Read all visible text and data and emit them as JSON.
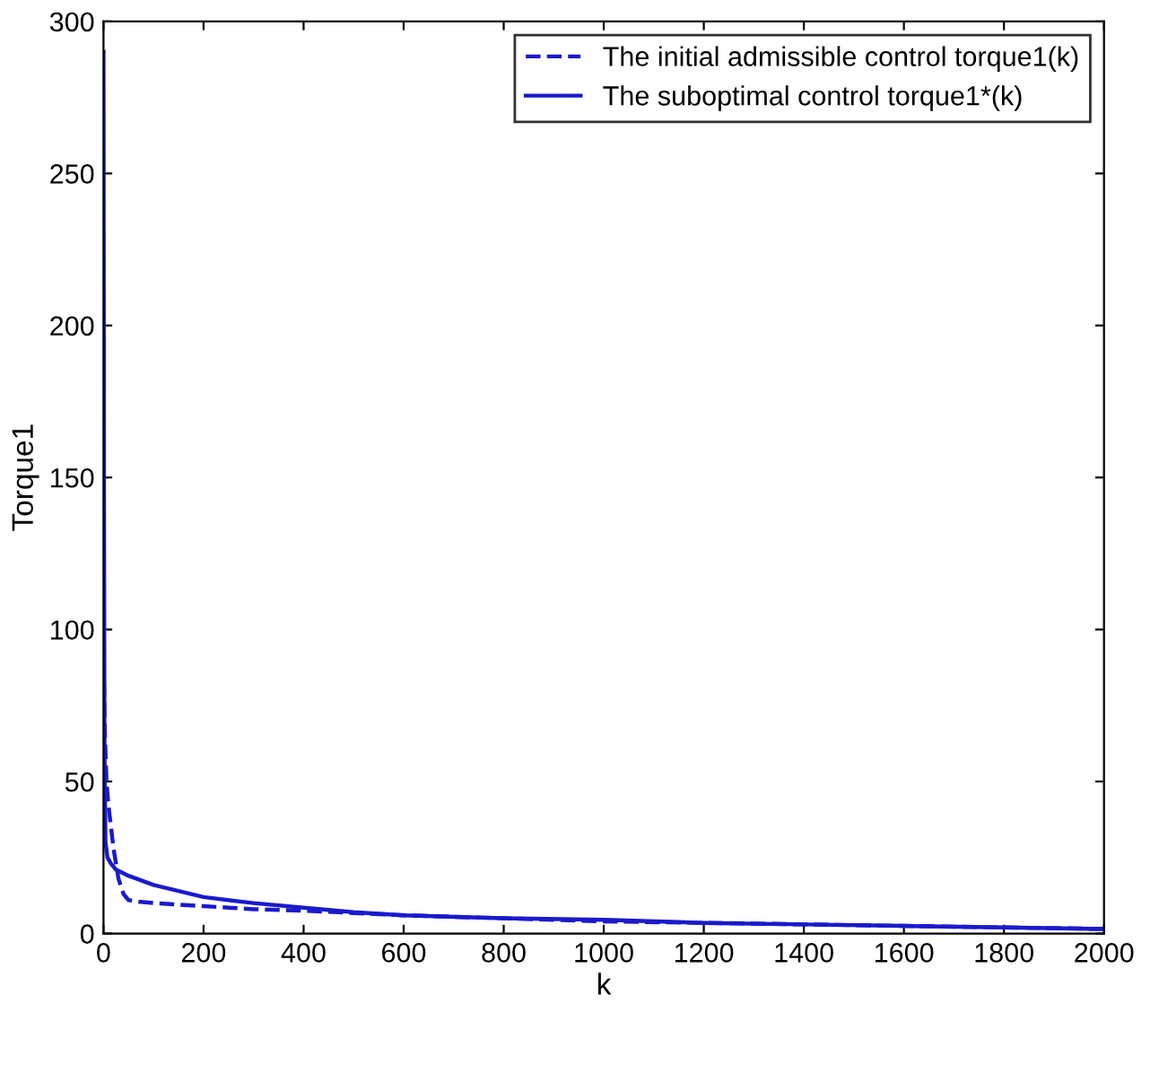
{
  "chart_data": {
    "type": "line",
    "xlabel": "k",
    "ylabel": "Torque1",
    "xlim": [
      0,
      2000
    ],
    "ylim": [
      0,
      300
    ],
    "xticks": [
      0,
      200,
      400,
      600,
      800,
      1000,
      1200,
      1400,
      1600,
      1800,
      2000
    ],
    "yticks": [
      0,
      50,
      100,
      150,
      200,
      250,
      300
    ],
    "grid": false,
    "legend": "top right",
    "series": [
      {
        "name": "The initial admissible control torque1(k)",
        "color": "#1a1acc",
        "line_style": "dashed",
        "x": [
          0,
          3,
          6,
          10,
          15,
          20,
          30,
          40,
          50,
          70,
          100,
          200,
          300,
          400,
          600,
          800,
          1000,
          1200,
          1400,
          1600,
          1800,
          2000
        ],
        "values": [
          90,
          65,
          50,
          42,
          35,
          28,
          18,
          13,
          11,
          10.5,
          10,
          9,
          8,
          7.5,
          6,
          5,
          4,
          3.5,
          3,
          2.5,
          2,
          1.5
        ]
      },
      {
        "name": "The suboptimal control torque1*(k)",
        "color": "#1a1acc",
        "line_style": "solid",
        "x": [
          0,
          1,
          2,
          4,
          8,
          15,
          25,
          50,
          100,
          150,
          200,
          300,
          400,
          500,
          600,
          800,
          1000,
          1200,
          1400,
          1600,
          1800,
          2000
        ],
        "values": [
          290,
          150,
          60,
          30,
          25,
          23,
          21,
          19,
          16,
          14,
          12,
          10,
          8.5,
          7,
          6,
          5,
          4.5,
          3.5,
          3,
          2.5,
          2,
          1.5
        ]
      }
    ]
  }
}
